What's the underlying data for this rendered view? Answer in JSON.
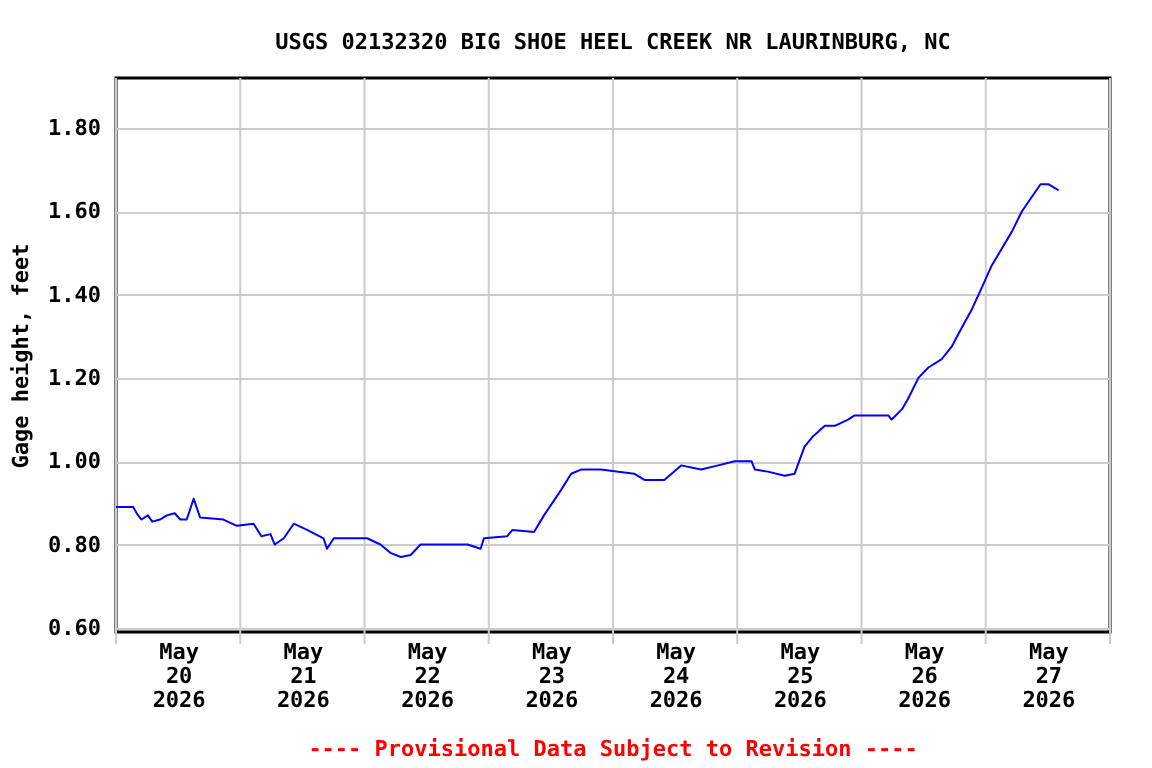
{
  "chart_data": {
    "type": "line",
    "title": "USGS 02132320 BIG SHOE HEEL CREEK NR LAURINBURG, NC",
    "ylabel": "Gage height, feet",
    "annotations": [
      "---- Provisional Data Subject to Revision ----"
    ],
    "xlim": [
      "2026-05-20T00:00",
      "2026-05-28T00:00"
    ],
    "xticks": [
      {
        "value": "2026-05-20T00:00",
        "label": null
      },
      {
        "value": "2026-05-20T12:00",
        "label": "May\n20\n2026"
      },
      {
        "value": "2026-05-21T00:00",
        "label": null
      },
      {
        "value": "2026-05-21T12:00",
        "label": "May\n21\n2026"
      },
      {
        "value": "2026-05-22T00:00",
        "label": null
      },
      {
        "value": "2026-05-22T12:00",
        "label": "May\n22\n2026"
      },
      {
        "value": "2026-05-23T00:00",
        "label": null
      },
      {
        "value": "2026-05-23T12:00",
        "label": "May\n23\n2026"
      },
      {
        "value": "2026-05-24T00:00",
        "label": null
      },
      {
        "value": "2026-05-24T12:00",
        "label": "May\n24\n2026"
      },
      {
        "value": "2026-05-25T00:00",
        "label": null
      },
      {
        "value": "2026-05-25T12:00",
        "label": "May\n25\n2026"
      },
      {
        "value": "2026-05-26T00:00",
        "label": null
      },
      {
        "value": "2026-05-26T12:00",
        "label": "May\n26\n2026"
      },
      {
        "value": "2026-05-27T00:00",
        "label": null
      },
      {
        "value": "2026-05-27T12:00",
        "label": "May\n27\n2026"
      },
      {
        "value": "2026-05-28T00:00",
        "label": null
      }
    ],
    "ylim": [
      0.59,
      1.92
    ],
    "yticks": [
      {
        "value": 0.6,
        "label": "0.60"
      },
      {
        "value": 0.8,
        "label": "0.80"
      },
      {
        "value": 1.0,
        "label": "1.00"
      },
      {
        "value": 1.2,
        "label": "1.20"
      },
      {
        "value": 1.4,
        "label": "1.40"
      },
      {
        "value": 1.6,
        "label": "1.60"
      },
      {
        "value": 1.8,
        "label": "1.80"
      }
    ],
    "grid": true,
    "legend": false,
    "marker": "none",
    "line_style": "solid",
    "x": [
      "2026-05-20T00:00",
      "2026-05-20T03:20",
      "2026-05-20T04:00",
      "2026-05-20T04:55",
      "2026-05-20T06:10",
      "2026-05-20T07:00",
      "2026-05-20T08:30",
      "2026-05-20T09:50",
      "2026-05-20T11:20",
      "2026-05-20T12:25",
      "2026-05-20T13:40",
      "2026-05-20T15:00",
      "2026-05-20T16:15",
      "2026-05-20T20:45",
      "2026-05-20T23:20",
      "2026-05-21T02:35",
      "2026-05-21T04:05",
      "2026-05-21T05:50",
      "2026-05-21T06:40",
      "2026-05-21T08:25",
      "2026-05-21T10:20",
      "2026-05-21T12:55",
      "2026-05-21T16:05",
      "2026-05-21T16:45",
      "2026-05-21T18:05",
      "2026-05-22T00:30",
      "2026-05-22T03:05",
      "2026-05-22T05:00",
      "2026-05-22T07:00",
      "2026-05-22T08:55",
      "2026-05-22T10:50",
      "2026-05-22T19:55",
      "2026-05-22T22:25",
      "2026-05-22T23:05",
      "2026-05-23T03:35",
      "2026-05-23T04:35",
      "2026-05-23T08:45",
      "2026-05-23T10:40",
      "2026-05-23T13:55",
      "2026-05-23T15:55",
      "2026-05-23T17:50",
      "2026-05-23T21:40",
      "2026-05-24T04:05",
      "2026-05-24T06:05",
      "2026-05-24T09:55",
      "2026-05-24T13:10",
      "2026-05-24T17:00",
      "2026-05-24T20:20",
      "2026-05-24T23:30",
      "2026-05-25T02:45",
      "2026-05-25T03:25",
      "2026-05-25T05:55",
      "2026-05-25T09:10",
      "2026-05-25T11:05",
      "2026-05-25T13:00",
      "2026-05-25T14:40",
      "2026-05-25T16:55",
      "2026-05-25T18:50",
      "2026-05-25T21:25",
      "2026-05-25T22:40",
      "2026-05-26T05:10",
      "2026-05-26T05:50",
      "2026-05-26T07:50",
      "2026-05-26T09:00",
      "2026-05-26T11:00",
      "2026-05-26T12:55",
      "2026-05-26T15:30",
      "2026-05-26T17:25",
      "2026-05-26T19:20",
      "2026-05-26T21:20",
      "2026-05-26T23:10",
      "2026-05-27T01:10",
      "2026-05-27T03:05",
      "2026-05-27T05:00",
      "2026-05-27T07:00",
      "2026-05-27T08:55",
      "2026-05-27T10:35",
      "2026-05-27T12:05",
      "2026-05-27T14:05"
    ],
    "series": [
      {
        "color": "#0000ff",
        "values": [
          0.89,
          0.89,
          0.875,
          0.86,
          0.87,
          0.855,
          0.86,
          0.87,
          0.875,
          0.86,
          0.86,
          0.91,
          0.865,
          0.86,
          0.845,
          0.85,
          0.82,
          0.825,
          0.8,
          0.815,
          0.85,
          0.835,
          0.815,
          0.79,
          0.815,
          0.815,
          0.8,
          0.78,
          0.77,
          0.775,
          0.8,
          0.8,
          0.79,
          0.815,
          0.82,
          0.835,
          0.83,
          0.87,
          0.93,
          0.97,
          0.98,
          0.98,
          0.97,
          0.955,
          0.955,
          0.99,
          0.98,
          0.99,
          1.0,
          1.0,
          0.98,
          0.975,
          0.965,
          0.97,
          1.035,
          1.06,
          1.085,
          1.085,
          1.1,
          1.11,
          1.11,
          1.1,
          1.125,
          1.15,
          1.2,
          1.225,
          1.245,
          1.275,
          1.32,
          1.365,
          1.415,
          1.47,
          1.51,
          1.55,
          1.6,
          1.635,
          1.665,
          1.665,
          1.65
        ]
      }
    ]
  }
}
